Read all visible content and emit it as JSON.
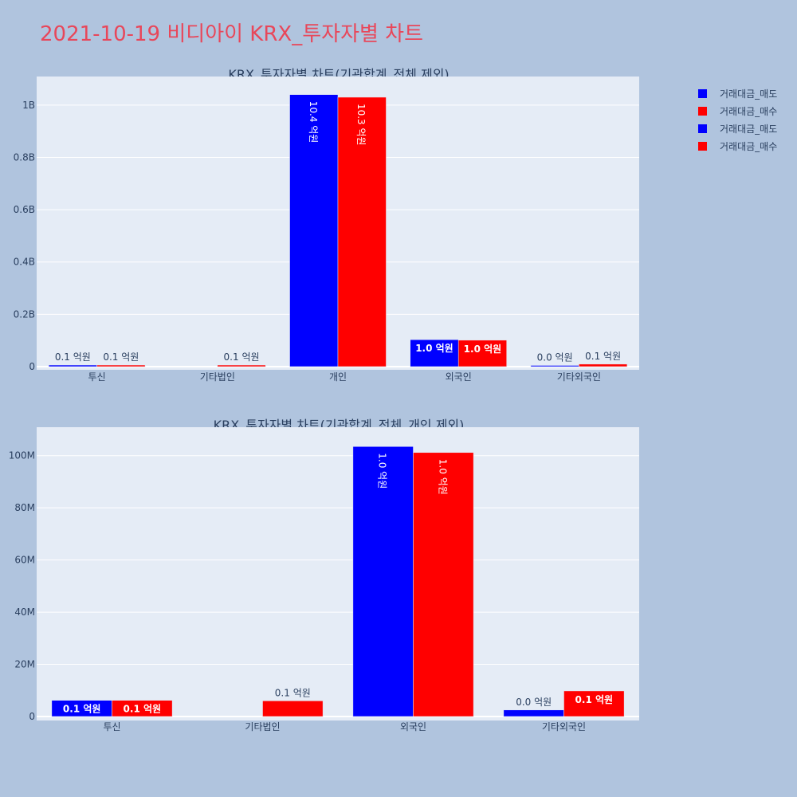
{
  "page_title": "2021-10-19 비디아이 KRX_투자자별 차트",
  "legend": [
    {
      "label": "거래대금_매도",
      "color": "#0000ff"
    },
    {
      "label": "거래대금_매수",
      "color": "#ff0000"
    },
    {
      "label": "거래대금_매도",
      "color": "#0000ff"
    },
    {
      "label": "거래대금_매수",
      "color": "#ff0000"
    }
  ],
  "colors": {
    "sell": "#0000ff",
    "buy": "#ff0000",
    "plot_bg": "#e5ecf6",
    "page_bg": "#b0c4de",
    "title": "#e8475a"
  },
  "chart_data": [
    {
      "type": "bar",
      "title": "KRX_투자자별 차트(기관합계_전체 제외)",
      "categories": [
        "투신",
        "기타법인",
        "개인",
        "외국인",
        "기타외국인"
      ],
      "ylim": [
        0,
        1100000000
      ],
      "yticks": [
        0,
        200000000,
        400000000,
        600000000,
        800000000,
        1000000000
      ],
      "ytick_labels": [
        "0",
        "0.2B",
        "0.4B",
        "0.6B",
        "0.8B",
        "1B"
      ],
      "grid": true,
      "series": [
        {
          "name": "거래대금_매도",
          "color": "#0000ff",
          "values": [
            6000000,
            null,
            1040000000,
            103000000,
            2500000
          ],
          "labels": [
            "0.1 억원",
            "",
            "10.4 억원",
            "1.0 억원",
            "0.0 억원"
          ]
        },
        {
          "name": "거래대금_매수",
          "color": "#ff0000",
          "values": [
            6000000,
            6000000,
            1030000000,
            101000000,
            9500000
          ],
          "labels": [
            "0.1 억원",
            "0.1 억원",
            "10.3 억원",
            "1.0 억원",
            "0.1 억원"
          ]
        }
      ]
    },
    {
      "type": "bar",
      "title": "KRX_투자자별 차트(기관합계_전체_개인 제외)",
      "categories": [
        "투신",
        "기타법인",
        "외국인",
        "기타외국인"
      ],
      "ylim": [
        0,
        110000000
      ],
      "yticks": [
        0,
        20000000,
        40000000,
        60000000,
        80000000,
        100000000
      ],
      "ytick_labels": [
        "0",
        "20M",
        "40M",
        "60M",
        "80M",
        "100M"
      ],
      "grid": true,
      "series": [
        {
          "name": "거래대금_매도",
          "color": "#0000ff",
          "values": [
            6200000,
            null,
            103500000,
            2500000
          ],
          "labels": [
            "0.1 억원",
            "",
            "1.0 억원",
            "0.0 억원"
          ]
        },
        {
          "name": "거래대금_매수",
          "color": "#ff0000",
          "values": [
            6200000,
            6000000,
            101200000,
            9800000
          ],
          "labels": [
            "0.1 억원",
            "0.1 억원",
            "1.0 억원",
            "0.1 억원"
          ]
        }
      ]
    }
  ]
}
